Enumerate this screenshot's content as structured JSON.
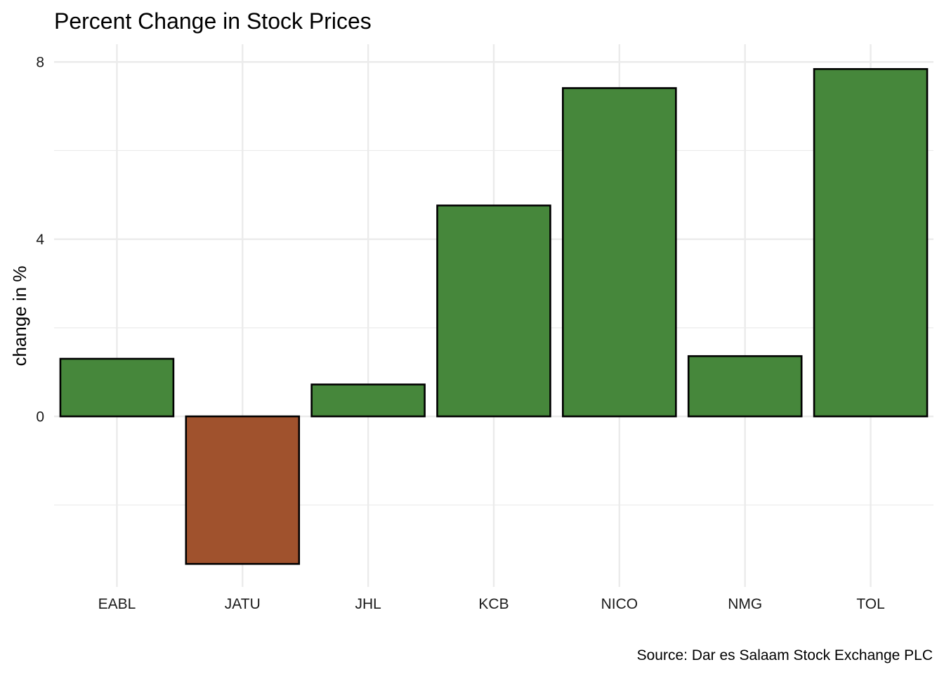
{
  "chart_data": {
    "type": "bar",
    "title": "Percent Change in Stock Prices",
    "xlabel": "",
    "ylabel": "change in %",
    "caption": "Source: Dar es Salaam Stock Exchange PLC",
    "categories": [
      "EABL",
      "JATU",
      "JHL",
      "KCB",
      "NICO",
      "NMG",
      "TOL"
    ],
    "values": [
      1.3,
      -3.33,
      0.72,
      4.76,
      7.41,
      1.36,
      7.84
    ],
    "ylim": [
      -3.85,
      8.4
    ],
    "yticks": [
      0,
      4,
      8
    ],
    "ytick_labels": [
      "0",
      "4",
      "8"
    ],
    "grid": true,
    "legend": "none",
    "colors": {
      "positive": "#46873B",
      "negative": "#A0522D",
      "outline": "#000000",
      "grid": "#EBEBEB"
    }
  }
}
